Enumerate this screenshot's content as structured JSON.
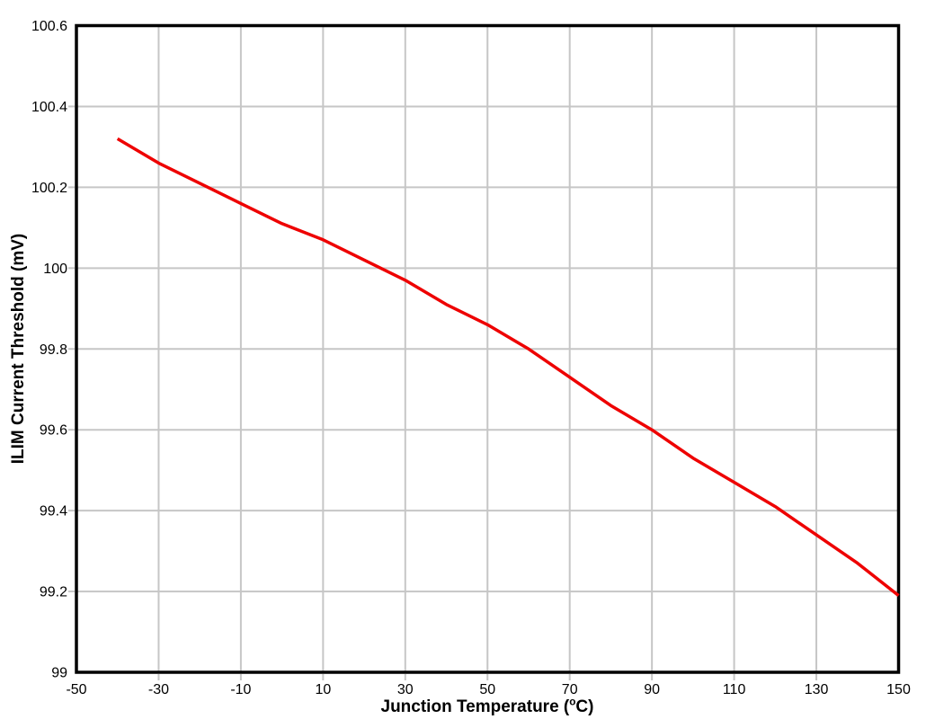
{
  "chart_data": {
    "type": "line",
    "title": "",
    "xlabel": "Junction Temperature (°C)",
    "xlabel_parts": [
      "Junction Temperature (",
      "o",
      "C)"
    ],
    "ylabel": "ILIM Current Threshold (mV)",
    "xlim": [
      -50,
      150
    ],
    "ylim": [
      99,
      100.6
    ],
    "x_ticks": [
      -50,
      -30,
      -10,
      10,
      30,
      50,
      70,
      90,
      110,
      130,
      150
    ],
    "x_tick_labels": [
      "-50",
      "-30",
      "-10",
      "10",
      "30",
      "50",
      "70",
      "90",
      "110",
      "130",
      "150"
    ],
    "y_ticks": [
      100.6,
      100.4,
      100.2,
      100,
      99.8,
      99.6,
      99.4,
      99.2,
      99
    ],
    "y_tick_labels": [
      "100.6",
      "100.4",
      "100.2",
      "100",
      "99.8",
      "99.6",
      "99.4",
      "99.2",
      "99"
    ],
    "grid": true,
    "legend": "none",
    "series": [
      {
        "name": "ILIM Current Threshold",
        "color": "#ee0000",
        "x": [
          -40,
          -30,
          -20,
          -10,
          0,
          10,
          20,
          30,
          40,
          50,
          60,
          70,
          80,
          90,
          100,
          110,
          120,
          130,
          140,
          150
        ],
        "y": [
          100.32,
          100.26,
          100.21,
          100.16,
          100.11,
          100.07,
          100.02,
          99.97,
          99.91,
          99.86,
          99.8,
          99.73,
          99.66,
          99.6,
          99.53,
          99.47,
          99.41,
          99.34,
          99.27,
          99.19
        ]
      }
    ]
  },
  "colors": {
    "line": "#ee0000",
    "grid": "#c6c6c6",
    "axis": "#000000",
    "text": "#000000",
    "background": "#ffffff"
  }
}
